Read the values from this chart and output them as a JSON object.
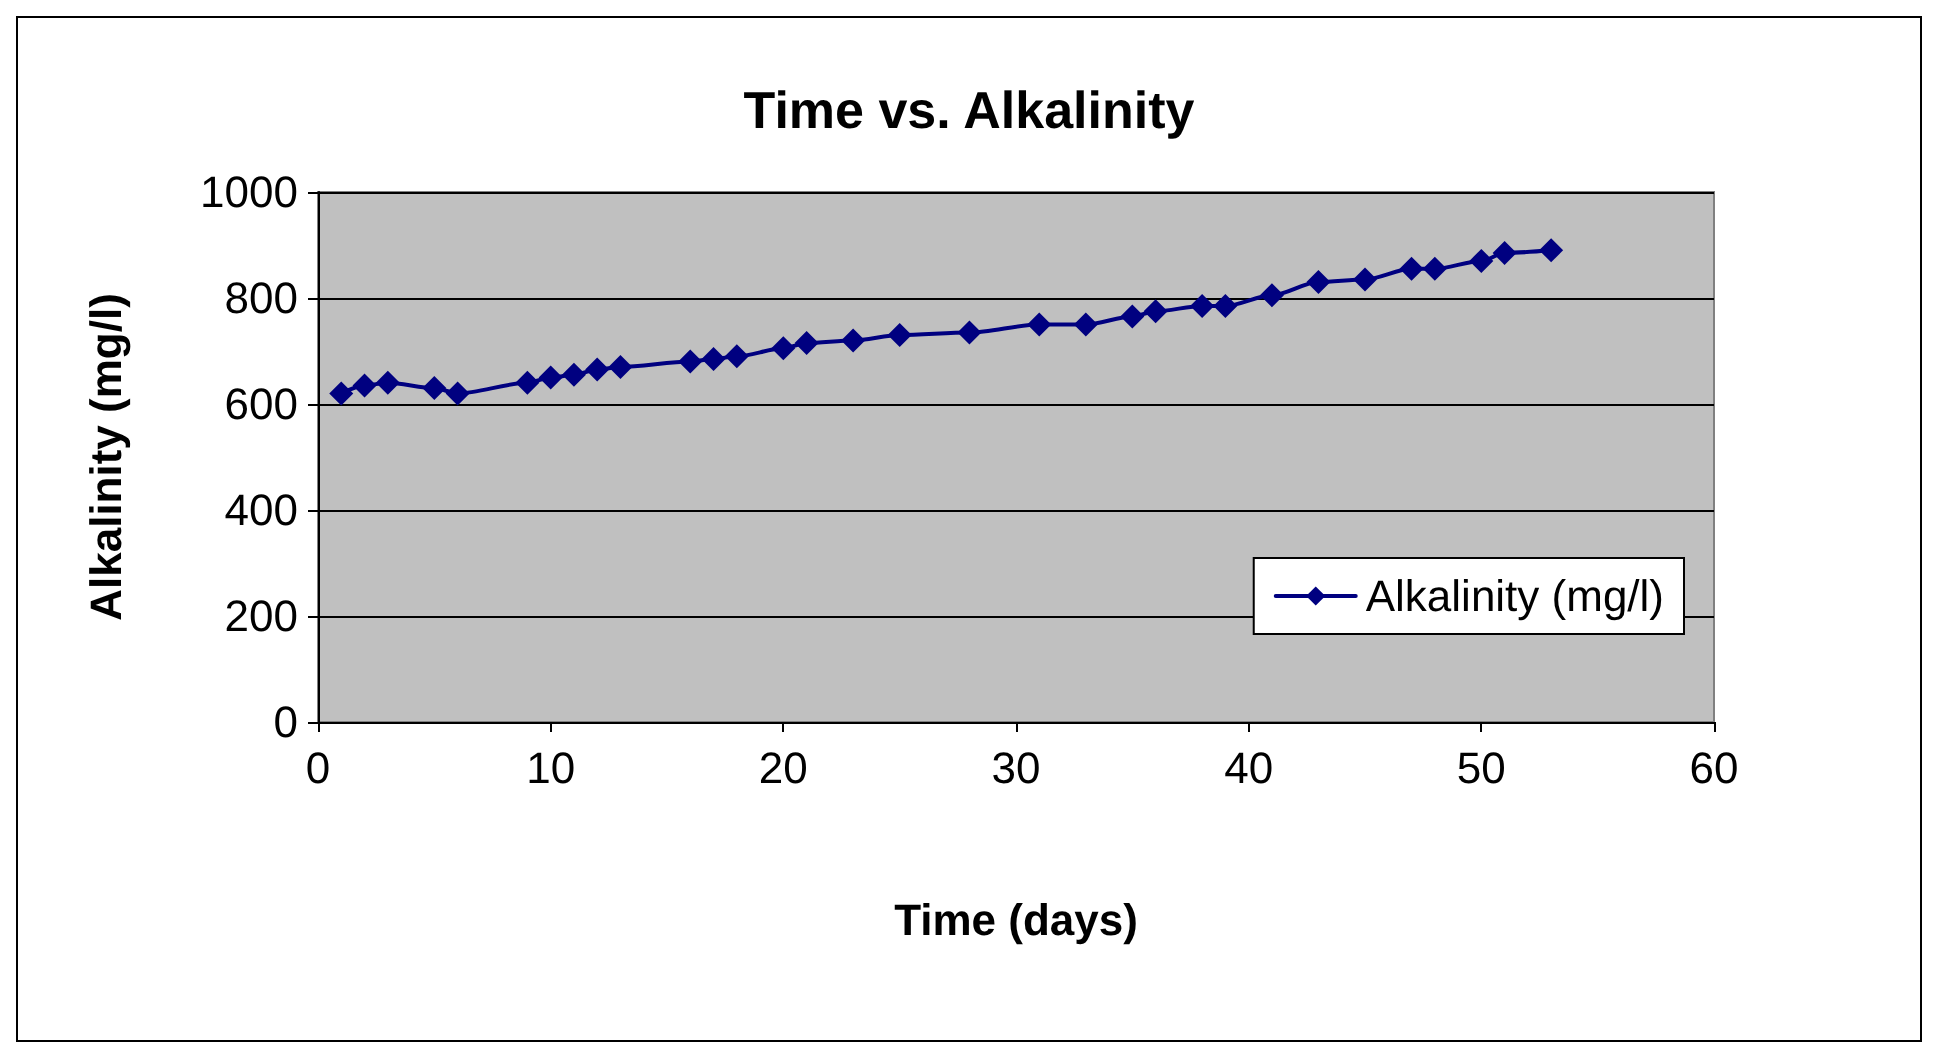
{
  "chart_data": {
    "type": "line",
    "title": "Time vs. Alkalinity",
    "xlabel": "Time (days)",
    "ylabel": "Alkalinity (mg/l)",
    "x": [
      1,
      2,
      3,
      5,
      6,
      9,
      10,
      11,
      12,
      13,
      16,
      17,
      18,
      20,
      21,
      23,
      25,
      28,
      31,
      33,
      35,
      36,
      38,
      39,
      41,
      43,
      45,
      47,
      48,
      50,
      51,
      53
    ],
    "series": [
      {
        "name": "Alkalinity (mg/l)",
        "color": "#000080",
        "values": [
          620,
          635,
          640,
          630,
          620,
          640,
          650,
          655,
          665,
          670,
          680,
          685,
          690,
          705,
          715,
          720,
          730,
          735,
          750,
          750,
          765,
          775,
          785,
          785,
          805,
          830,
          835,
          855,
          855,
          870,
          885,
          890
        ]
      }
    ],
    "xlim": [
      0,
      60
    ],
    "xticks": [
      0,
      10,
      20,
      30,
      40,
      50,
      60
    ],
    "ylim": [
      0,
      1000
    ],
    "yticks": [
      0,
      200,
      400,
      600,
      800,
      1000
    ],
    "grid": "y",
    "legend": "right",
    "marker": "diamond",
    "line_style": "solid"
  }
}
